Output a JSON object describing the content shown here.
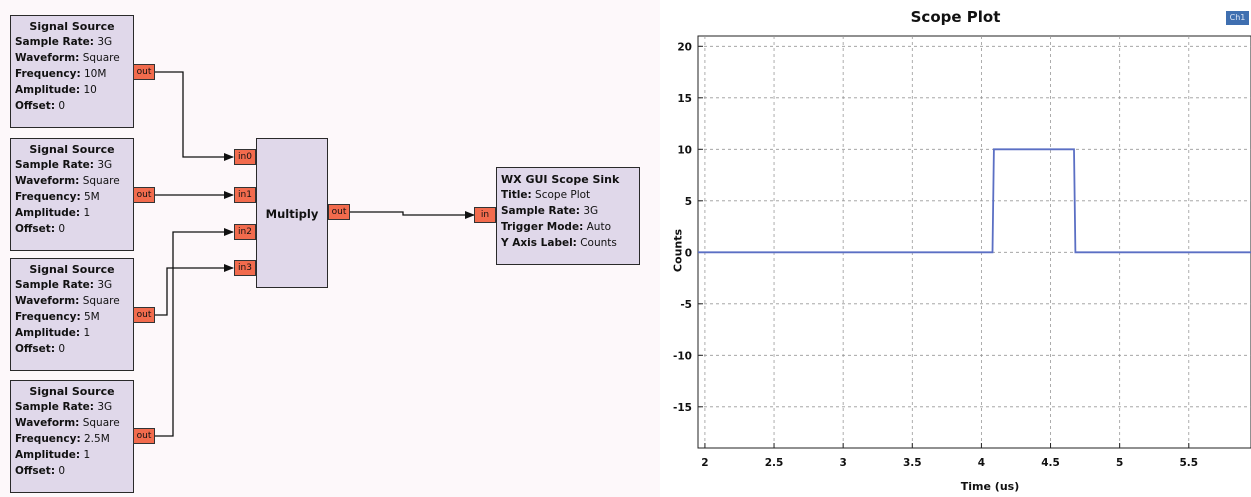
{
  "flowgraph": {
    "sources": [
      {
        "title": "Signal Source",
        "rows": [
          {
            "k": "Sample Rate:",
            "v": "3G"
          },
          {
            "k": "Waveform:",
            "v": "Square"
          },
          {
            "k": "Frequency:",
            "v": "10M"
          },
          {
            "k": "Amplitude:",
            "v": "10"
          },
          {
            "k": "Offset:",
            "v": "0"
          }
        ],
        "port": "out"
      },
      {
        "title": "Signal Source",
        "rows": [
          {
            "k": "Sample Rate:",
            "v": "3G"
          },
          {
            "k": "Waveform:",
            "v": "Square"
          },
          {
            "k": "Frequency:",
            "v": "5M"
          },
          {
            "k": "Amplitude:",
            "v": "1"
          },
          {
            "k": "Offset:",
            "v": "0"
          }
        ],
        "port": "out"
      },
      {
        "title": "Signal Source",
        "rows": [
          {
            "k": "Sample Rate:",
            "v": "3G"
          },
          {
            "k": "Waveform:",
            "v": "Square"
          },
          {
            "k": "Frequency:",
            "v": "5M"
          },
          {
            "k": "Amplitude:",
            "v": "1"
          },
          {
            "k": "Offset:",
            "v": "0"
          }
        ],
        "port": "out"
      },
      {
        "title": "Signal Source",
        "rows": [
          {
            "k": "Sample Rate:",
            "v": "3G"
          },
          {
            "k": "Waveform:",
            "v": "Square"
          },
          {
            "k": "Frequency:",
            "v": "2.5M"
          },
          {
            "k": "Amplitude:",
            "v": "1"
          },
          {
            "k": "Offset:",
            "v": "0"
          }
        ],
        "port": "out"
      }
    ],
    "multiply": {
      "title": "Multiply",
      "inputs": [
        "in0",
        "in1",
        "in2",
        "in3"
      ],
      "output": "out"
    },
    "sink": {
      "title": "WX GUI Scope Sink",
      "input": "in",
      "rows": [
        {
          "k": "Title:",
          "v": "Scope Plot"
        },
        {
          "k": "Sample Rate:",
          "v": "3G"
        },
        {
          "k": "Trigger Mode:",
          "v": "Auto"
        },
        {
          "k": "Y Axis Label:",
          "v": "Counts"
        }
      ]
    }
  },
  "scope": {
    "title": "Scope Plot",
    "channel_button": "Ch1",
    "line_color": "#5b6fc4",
    "background_color": "#ffffff",
    "chart_data": {
      "type": "line",
      "title": "Scope Plot",
      "xlabel": "Time (us)",
      "ylabel": "Counts",
      "xlim": [
        1.95,
        5.95
      ],
      "ylim": [
        -19,
        21
      ],
      "xticks": [
        "2",
        "2.5",
        "3",
        "3.5",
        "4",
        "4.5",
        "5",
        "5.5"
      ],
      "yticks": [
        "20",
        "15",
        "10",
        "5",
        "0",
        "-5",
        "-10",
        "-15"
      ],
      "grid": true,
      "series": [
        {
          "name": "Ch1",
          "x": [
            1.95,
            4.08,
            4.09,
            4.67,
            4.68,
            5.95
          ],
          "y": [
            0,
            0,
            10,
            10,
            0,
            0
          ]
        }
      ]
    }
  }
}
